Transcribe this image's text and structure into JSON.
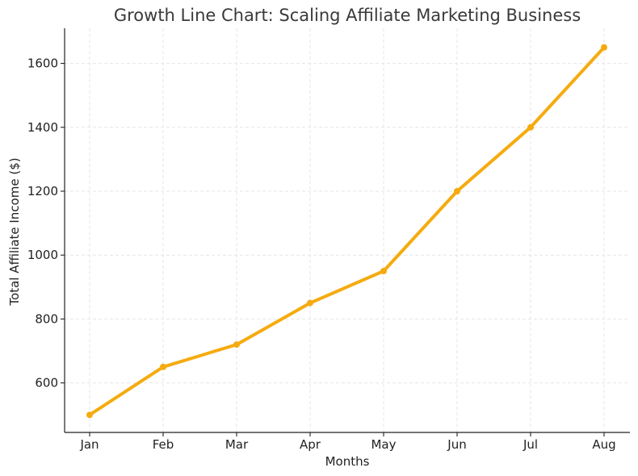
{
  "chart_data": {
    "type": "line",
    "title": "Growth Line Chart: Scaling Affiliate Marketing Business",
    "xlabel": "Months",
    "ylabel": "Total Affiliate Income ($)",
    "categories": [
      "Jan",
      "Feb",
      "Mar",
      "Apr",
      "May",
      "Jun",
      "Jul",
      "Aug"
    ],
    "series": [
      {
        "values": [
          500,
          650,
          720,
          850,
          950,
          1200,
          1400,
          1650
        ],
        "color": "#f5ab0f"
      }
    ],
    "ylim": [
      445,
      1710
    ],
    "yticks": [
      600,
      800,
      1000,
      1200,
      1400,
      1600
    ],
    "grid": true,
    "legend": "none"
  }
}
